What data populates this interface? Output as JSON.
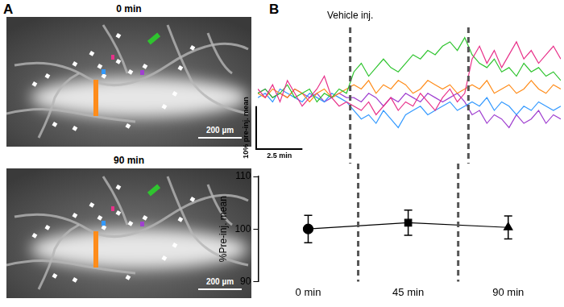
{
  "panel_labels": [
    "A",
    "B"
  ],
  "images": [
    {
      "title": "0 min",
      "scale_bar": "200 µm"
    },
    {
      "title": "90 min",
      "scale_bar": "200 µm"
    }
  ],
  "chart_data": [
    {
      "type": "line",
      "annotation": "Vehicle inj.",
      "vlines": [
        5,
        11.4
      ],
      "x": [
        0,
        0.4,
        0.8,
        1.2,
        1.6,
        2,
        2.4,
        2.8,
        3.2,
        3.6,
        4,
        4.4,
        4.8,
        5.2,
        5.6,
        6,
        6.4,
        6.8,
        7.2,
        7.6,
        8,
        8.4,
        8.8,
        9.2,
        9.6,
        10,
        10.4,
        10.8,
        11.2,
        11.6,
        12,
        12.4,
        12.8,
        13.2,
        13.6,
        14,
        14.4,
        14.8,
        15.2,
        15.6,
        16,
        16.4
      ],
      "series": [
        {
          "color": "#e8318a",
          "values": [
            101,
            99,
            102,
            98,
            103,
            100,
            97,
            99,
            101,
            104,
            99,
            97,
            98,
            97,
            96,
            98,
            95,
            97,
            99,
            96,
            98,
            97,
            100,
            98,
            96,
            99,
            101,
            98,
            100,
            108,
            111,
            107,
            110,
            106,
            109,
            112,
            108,
            110,
            107,
            109,
            111,
            108
          ]
        },
        {
          "color": "#2fc42f",
          "values": [
            100,
            101,
            99,
            100,
            102,
            99,
            100,
            101,
            98,
            100,
            99,
            101,
            100,
            105,
            107,
            104,
            106,
            108,
            106,
            105,
            107,
            109,
            108,
            110,
            109,
            111,
            112,
            110,
            113,
            109,
            107,
            106,
            108,
            105,
            106,
            104,
            107,
            105,
            106,
            104,
            105,
            103
          ]
        },
        {
          "color": "#ff8c1a",
          "values": [
            100,
            99,
            101,
            100,
            99,
            101,
            100,
            98,
            100,
            101,
            99,
            100,
            101,
            102,
            101,
            103,
            100,
            102,
            101,
            103,
            102,
            100,
            101,
            103,
            102,
            101,
            102,
            100,
            101,
            102,
            101,
            103,
            100,
            101,
            102,
            100,
            101,
            103,
            101,
            100,
            102,
            101
          ]
        },
        {
          "color": "#3399ff",
          "values": [
            99,
            100,
            98,
            101,
            100,
            99,
            98,
            100,
            99,
            98,
            100,
            99,
            98,
            96,
            94,
            95,
            93,
            96,
            94,
            92,
            95,
            96,
            97,
            95,
            96,
            97,
            98,
            96,
            97,
            98,
            97,
            99,
            96,
            98,
            97,
            95,
            97,
            96,
            98,
            97,
            96,
            97
          ]
        },
        {
          "color": "#a040d0",
          "values": [
            100,
            101,
            99,
            100,
            99,
            101,
            100,
            99,
            100,
            98,
            99,
            100,
            99,
            99,
            98,
            100,
            99,
            97,
            99,
            98,
            100,
            99,
            98,
            100,
            99,
            98,
            99,
            100,
            98,
            95,
            96,
            93,
            95,
            94,
            92,
            95,
            93,
            94,
            96,
            93,
            95,
            94
          ]
        }
      ],
      "scale_bar": {
        "x": 2.5,
        "x_label": "2.5 min",
        "y": 10,
        "y_label": "10% pre-inj. mean"
      },
      "tick_labels": false,
      "grid": false
    },
    {
      "type": "line",
      "categories": [
        "0 min",
        "45 min",
        "90 min"
      ],
      "values": [
        100,
        101.2,
        100.3
      ],
      "errors": [
        2.6,
        2.4,
        2.2
      ],
      "markers": [
        "circle",
        "square",
        "triangle"
      ],
      "color": "#000000",
      "line_style": "solid",
      "ylabel": "%Pre-inj. mean",
      "ylim": [
        90,
        110
      ],
      "yticks": [
        90,
        100,
        110
      ],
      "grid": false
    }
  ]
}
